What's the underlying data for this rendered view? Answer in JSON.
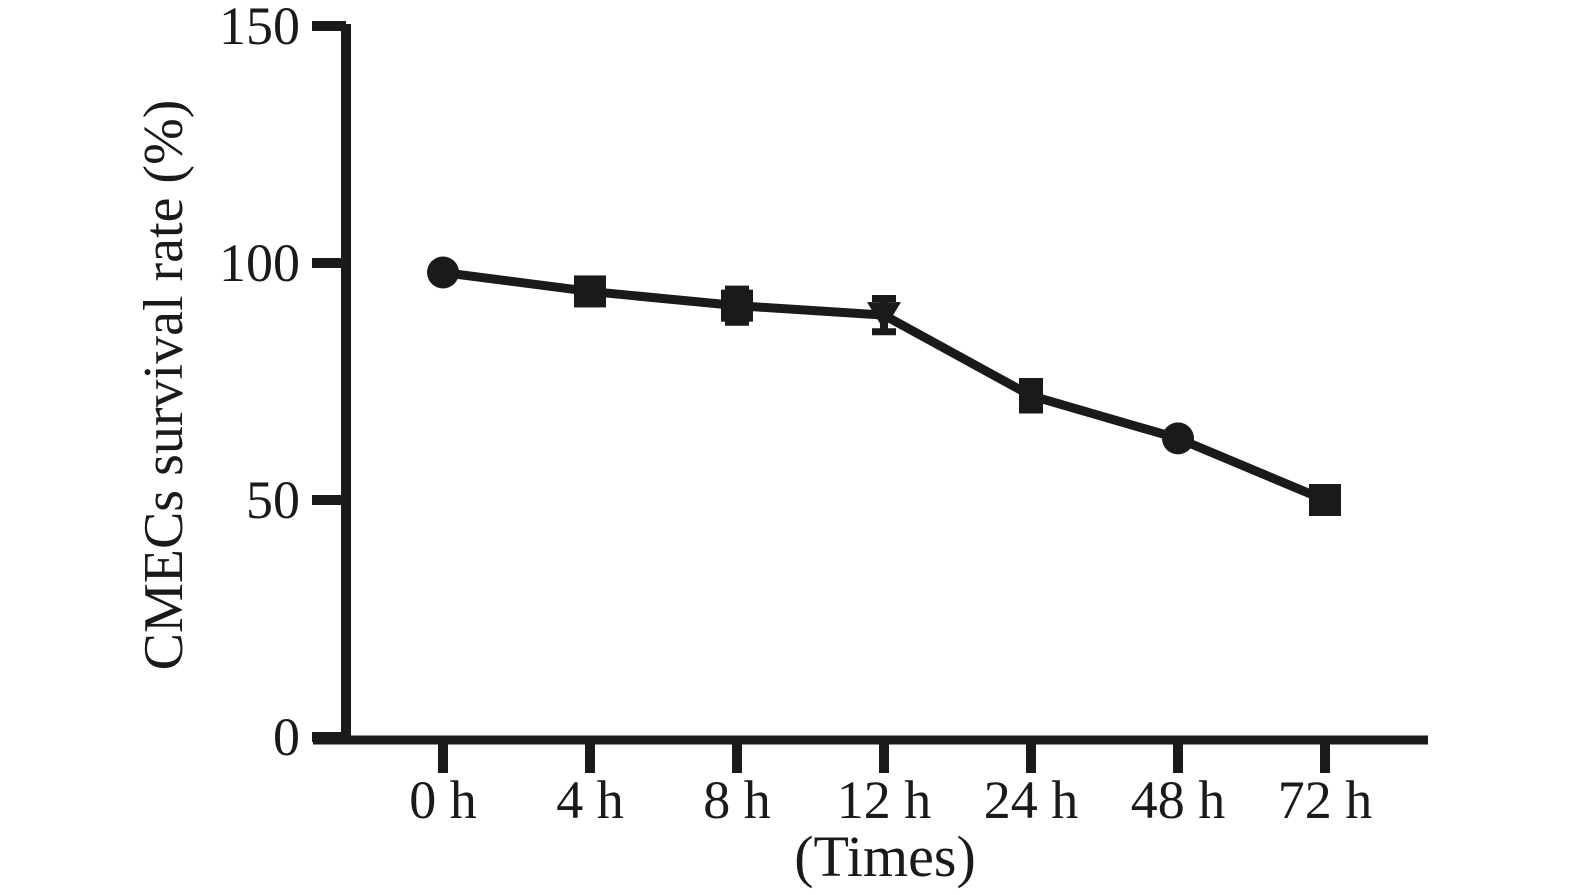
{
  "figure": {
    "background": "#ffffff",
    "ink_color": "#1a1a1a"
  },
  "chart_data": {
    "type": "line",
    "title": "",
    "xlabel": "(Times)",
    "ylabel": "CMECs survival rate (%)",
    "categories": [
      "0 h",
      "4 h",
      "8 h",
      "12 h",
      "24 h",
      "48 h",
      "72 h"
    ],
    "y_ticks": [
      0,
      50,
      100,
      150
    ],
    "y_tick_labels": [
      "0",
      "50",
      "100",
      "150"
    ],
    "ylim": [
      0,
      150
    ],
    "grid": false,
    "legend": "none",
    "series": [
      {
        "name": "CMECs survival rate",
        "color": "#1a1a1a",
        "values": [
          98,
          94,
          91,
          89,
          72,
          63,
          50
        ],
        "errors": [
          0,
          0,
          3.5,
          3.5,
          3,
          0,
          0
        ],
        "markers": [
          "circle",
          "square",
          "square",
          "triangle-down",
          "square-small",
          "circle",
          "square"
        ]
      }
    ]
  }
}
